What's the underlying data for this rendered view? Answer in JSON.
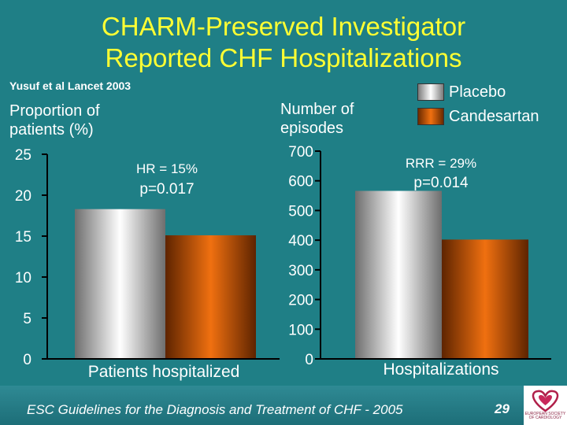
{
  "slide": {
    "title_line1": "CHARM-Preserved Investigator",
    "title_line2": "Reported CHF Hospitalizations",
    "citation": "Yusuf et al Lancet 2003",
    "footer": "ESC Guidelines for the Diagnosis and Treatment of CHF - 2005",
    "page_number": "29",
    "logo_text": "EUROPEAN SOCIETY OF CARDIOLOGY",
    "colors": {
      "background": "#1f7f86",
      "title": "#ffff33",
      "placebo": "#d9d9d9",
      "candesartan": "#e06000"
    }
  },
  "legend": [
    {
      "name": "Placebo",
      "color": "#d9d9d9"
    },
    {
      "name": "Candesartan",
      "color": "#e06000"
    }
  ],
  "chart_data": [
    {
      "type": "bar",
      "title": "",
      "ylabel_line1": "Proportion of",
      "ylabel_line2": "patients (%)",
      "xlabel": "Patients hospitalized",
      "ylim": [
        0,
        25
      ],
      "yticks": [
        0,
        5,
        10,
        15,
        20,
        25
      ],
      "ytick_labels": [
        "0",
        "5",
        "10",
        "15",
        "20",
        "25"
      ],
      "series": [
        {
          "name": "Placebo",
          "values": [
            18.3
          ]
        },
        {
          "name": "Candesartan",
          "values": [
            15.1
          ]
        }
      ],
      "annotations": [
        "HR = 15%",
        "p=0.017"
      ],
      "grid": false
    },
    {
      "type": "bar",
      "title": "",
      "ylabel_line1": "Number of",
      "ylabel_line2": "episodes",
      "xlabel": "Hospitalizations",
      "ylim": [
        0,
        700
      ],
      "yticks": [
        0,
        100,
        200,
        300,
        400,
        500,
        600,
        700
      ],
      "ytick_labels": [
        "0",
        "100",
        "200",
        "300",
        "400",
        "500",
        "600",
        "700"
      ],
      "series": [
        {
          "name": "Placebo",
          "values": [
            566
          ]
        },
        {
          "name": "Candesartan",
          "values": [
            402
          ]
        }
      ],
      "annotations": [
        "RRR = 29%",
        "p=0.014"
      ],
      "grid": false
    }
  ]
}
